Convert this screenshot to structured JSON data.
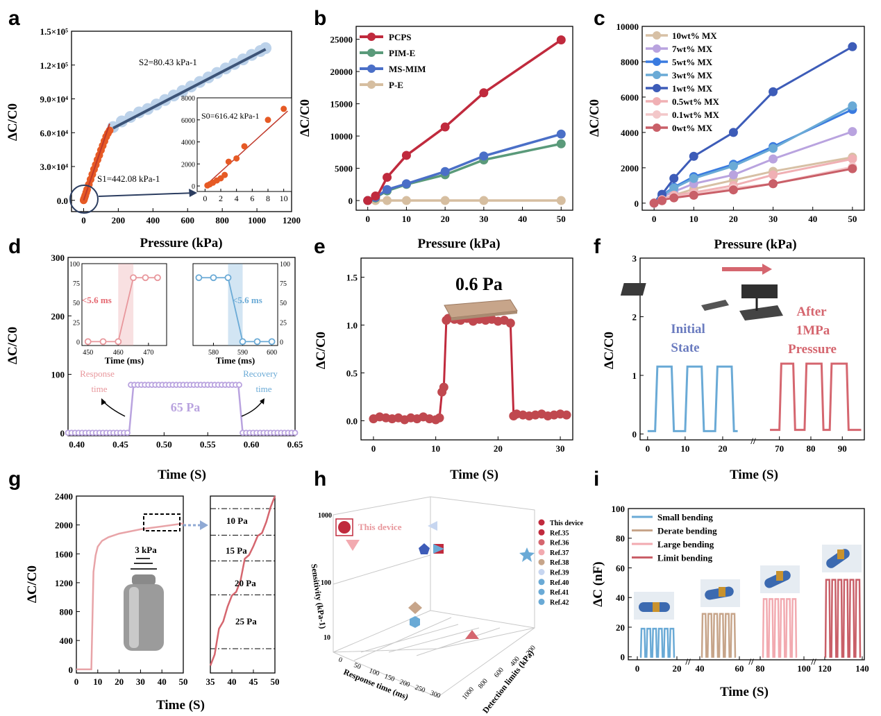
{
  "colors": {
    "red": "#c02a3d",
    "green": "#5a9a7a",
    "blue": "#4a6fc7",
    "tan": "#d6bea0",
    "lightblue": "#bcd2ea",
    "orange": "#e65a25",
    "navy": "#3d5478",
    "purple": "#b9a3df",
    "pink": "#e8979c",
    "skyblue": "#6aaad6",
    "salmon": "#d5666f"
  },
  "chart_data": [
    {
      "panel": "a",
      "type": "scatter",
      "xlabel": "Pressure (kPa)",
      "ylabel": "ΔC/C0",
      "xlim": [
        -70,
        1200
      ],
      "ylim": [
        -10000,
        150000
      ],
      "xticks": [
        "0",
        "200",
        "400",
        "600",
        "800",
        "1000",
        "1200"
      ],
      "yticks": [
        "0.0",
        "3.0×10⁴",
        "6.0×10⁴",
        "9.0×10⁴",
        "1.2×10⁵",
        "1.5×10⁵"
      ],
      "annotations": {
        "s1": "S1=442.08 kPa-1",
        "s2": "S2=80.43 kPa-1",
        "s0": "S0=616.42 kPa-1"
      },
      "low_series": {
        "x": [
          0,
          1,
          2,
          3,
          5,
          8,
          10,
          15,
          20,
          30,
          40,
          50,
          60,
          70,
          80,
          90,
          100,
          110,
          120,
          130,
          140,
          150
        ],
        "y": [
          0,
          500,
          900,
          1500,
          2200,
          3600,
          4500,
          7000,
          9500,
          14000,
          18500,
          23000,
          27500,
          31500,
          36000,
          40000,
          44500,
          48500,
          52500,
          56500,
          59500,
          62000
        ]
      },
      "high_series": {
        "x": [
          170,
          220,
          270,
          320,
          370,
          420,
          470,
          520,
          570,
          620,
          670,
          720,
          770,
          820,
          870,
          920,
          970,
          1020,
          1050
        ],
        "y": [
          65000,
          70000,
          74000,
          78000,
          81000,
          85000,
          89000,
          93000,
          97000,
          101000,
          105000,
          109000,
          113000,
          117000,
          121000,
          125000,
          129000,
          132500,
          135000
        ]
      },
      "inset": {
        "xlim": [
          -1,
          11
        ],
        "ylim": [
          -500,
          8000
        ],
        "xticks": [
          "0",
          "2",
          "4",
          "6",
          "8",
          "10"
        ],
        "yticks": [
          "0",
          "2000",
          "4000",
          "6000",
          "8000"
        ],
        "x": [
          0.3,
          0.6,
          1,
          1.5,
          2,
          2.5,
          3,
          4,
          5,
          8,
          10
        ],
        "y": [
          50,
          150,
          300,
          500,
          700,
          1000,
          2200,
          2500,
          3600,
          6000,
          7000
        ]
      }
    },
    {
      "panel": "b",
      "type": "line",
      "xlabel": "Pressure (kPa)",
      "ylabel": "ΔC/C0",
      "xlim": [
        -3,
        53
      ],
      "ylim": [
        -1500,
        27000
      ],
      "xticks": [
        "0",
        "10",
        "20",
        "30",
        "40",
        "50"
      ],
      "yticks": [
        "0",
        "5000",
        "10000",
        "15000",
        "20000",
        "25000"
      ],
      "x": [
        0,
        1,
        2,
        3,
        5,
        10,
        20,
        30,
        50
      ],
      "series": [
        {
          "name": "PCPS",
          "values": [
            0,
            200,
            700,
            1300,
            3600,
            7000,
            11400,
            16700,
            24900
          ]
        },
        {
          "name": "PIM-E",
          "values": [
            0,
            150,
            400,
            800,
            1500,
            2500,
            4000,
            6300,
            8800
          ]
        },
        {
          "name": "MS-MIM",
          "values": [
            0,
            200,
            500,
            900,
            1700,
            2600,
            4500,
            6900,
            10300
          ]
        },
        {
          "name": "P-E",
          "values": [
            0,
            0,
            0,
            0,
            0,
            0,
            0,
            0,
            0
          ]
        }
      ]
    },
    {
      "panel": "c",
      "type": "line",
      "xlabel": "Pressure (kPa)",
      "ylabel": "ΔC/C0",
      "xlim": [
        -3,
        53
      ],
      "ylim": [
        -400,
        10000
      ],
      "xticks": [
        "0",
        "10",
        "20",
        "30",
        "40",
        "50"
      ],
      "yticks": [
        "0",
        "2000",
        "4000",
        "6000",
        "8000",
        "10000"
      ],
      "x": [
        0,
        1,
        2,
        3,
        5,
        10,
        20,
        30,
        50
      ],
      "series": [
        {
          "name": "10wt% MX",
          "values": [
            0,
            100,
            200,
            300,
            450,
            800,
            1300,
            1800,
            2600
          ]
        },
        {
          "name": "7wt% MX",
          "values": [
            0,
            150,
            300,
            450,
            650,
            1100,
            1600,
            2500,
            4050
          ]
        },
        {
          "name": "5wt% MX",
          "values": [
            0,
            200,
            400,
            600,
            900,
            1500,
            2200,
            3200,
            5300
          ]
        },
        {
          "name": "3wt% MX",
          "values": [
            0,
            180,
            350,
            550,
            850,
            1400,
            2100,
            3100,
            5500
          ]
        },
        {
          "name": "1wt% MX",
          "values": [
            0,
            300,
            500,
            800,
            1400,
            2650,
            4000,
            6300,
            8850
          ]
        },
        {
          "name": "0.5wt% MX",
          "values": [
            0,
            100,
            200,
            300,
            450,
            600,
            1000,
            1600,
            2500
          ]
        },
        {
          "name": "0.1wt% MX",
          "values": [
            0,
            80,
            150,
            250,
            350,
            500,
            850,
            1100,
            2050
          ]
        },
        {
          "name": "0wt% MX",
          "values": [
            0,
            70,
            140,
            220,
            300,
            450,
            750,
            1100,
            1950
          ]
        }
      ]
    },
    {
      "panel": "d",
      "type": "line",
      "xlabel": "Time (S)",
      "ylabel": "ΔC/C0",
      "xlim": [
        0.39,
        0.65
      ],
      "ylim": [
        -5,
        300
      ],
      "xticks": [
        "0.40",
        "0.45",
        "0.50",
        "0.55",
        "0.60",
        "0.65"
      ],
      "yticks": [
        "0",
        "100",
        "200",
        "300"
      ],
      "annotations": {
        "response": "Response time",
        "recovery": "Recovery time",
        "pressure": "65 Pa"
      },
      "levels": {
        "low": 0,
        "high": 82
      },
      "transitions": {
        "rise_start": 0.46,
        "rise_end": 0.465,
        "fall_start": 0.585,
        "fall_end": 0.59
      },
      "inset_left": {
        "xlabel": "Time (ms)",
        "xlim": [
          448,
          476
        ],
        "ylim": [
          -5,
          100
        ],
        "xticks": [
          "450",
          "460",
          "470"
        ],
        "yticks": [
          "0",
          "25",
          "50",
          "75",
          "100"
        ],
        "label": "<5.6 ms",
        "x": [
          450,
          455,
          460,
          465,
          469,
          473
        ],
        "y": [
          0,
          0,
          0,
          82,
          82,
          82
        ]
      },
      "inset_right": {
        "xlabel": "Time (ms)",
        "xlim": [
          573,
          602
        ],
        "ylim": [
          -5,
          100
        ],
        "xticks": [
          "580",
          "590",
          "600"
        ],
        "yticks": [
          "0",
          "25",
          "50",
          "75",
          "100"
        ],
        "label": "<5.6 ms",
        "x": [
          575,
          580,
          585,
          590,
          595,
          600
        ],
        "y": [
          82,
          82,
          82,
          0,
          0,
          0
        ]
      }
    },
    {
      "panel": "e",
      "type": "line",
      "xlabel": "Time (S)",
      "ylabel": "ΔC/C0",
      "xlim": [
        -2,
        32
      ],
      "ylim": [
        -0.2,
        1.7
      ],
      "xticks": [
        "0",
        "10",
        "20",
        "30"
      ],
      "yticks": [
        "0.0",
        "0.5",
        "1.0",
        "1.5"
      ],
      "annotations": {
        "pressure": "0.6 Pa"
      },
      "x": [
        0,
        1,
        2,
        3,
        4,
        5,
        6,
        7,
        8,
        9,
        10,
        10.6,
        11,
        11.3,
        11.7,
        12,
        13,
        14,
        15,
        16,
        17,
        18,
        19,
        20,
        21,
        22,
        22.5,
        23,
        24,
        25,
        26,
        27,
        28,
        29,
        30,
        31
      ],
      "y": [
        0.02,
        0.04,
        0.03,
        0.02,
        0.03,
        0.01,
        0.03,
        0.02,
        0.04,
        0.02,
        0.01,
        0.03,
        0.3,
        0.35,
        1.05,
        1.07,
        1.06,
        1.05,
        1.07,
        1.04,
        1.06,
        1.05,
        1.06,
        1.04,
        1.05,
        1.02,
        0.05,
        0.07,
        0.06,
        0.05,
        0.06,
        0.07,
        0.05,
        0.06,
        0.07,
        0.06
      ]
    },
    {
      "panel": "f",
      "type": "line",
      "xlabel": "Time (S)",
      "ylabel": "ΔC/C0",
      "ylim": [
        -0.1,
        3
      ],
      "yticks": [
        "0",
        "1",
        "2",
        "3"
      ],
      "xticks_left": [
        "0",
        "10",
        "20"
      ],
      "xticks_right": [
        "70",
        "80",
        "90"
      ],
      "annotations": {
        "initial": "Initial State",
        "after": "After 1MPa Pressure"
      },
      "initial_state": {
        "cycles": [
          [
            2,
            7
          ],
          [
            10,
            15
          ],
          [
            18,
            23
          ]
        ],
        "high": 1.15,
        "low": 0.05
      },
      "after_pressure": {
        "cycles": [
          [
            70,
            75
          ],
          [
            78,
            84
          ],
          [
            86,
            92
          ]
        ],
        "high": 1.2,
        "low": 0.07
      }
    },
    {
      "panel": "g",
      "type": "line",
      "xlabel": "Time (S)",
      "ylabel": "ΔC/C0",
      "xlim": [
        0,
        50
      ],
      "ylim": [
        -50,
        2400
      ],
      "xticks": [
        "0",
        "10",
        "20",
        "30",
        "40",
        "50"
      ],
      "yticks": [
        "0",
        "400",
        "800",
        "1200",
        "1600",
        "2000",
        "2400"
      ],
      "annotations": {
        "weight": "3 kPa",
        "steps": [
          "10 Pa",
          "15 Pa",
          "20 Pa",
          "25 Pa"
        ]
      },
      "x": [
        0,
        5,
        6,
        7,
        8,
        9,
        10,
        12,
        15,
        20,
        25,
        30,
        35,
        40,
        45,
        50
      ],
      "y": [
        0,
        0,
        0,
        0,
        1350,
        1580,
        1700,
        1780,
        1830,
        1880,
        1910,
        1940,
        1960,
        1980,
        2000,
        2020
      ],
      "zoom": {
        "xlim": [
          35,
          50
        ],
        "ylim": [
          0,
          2400
        ],
        "xticks": [
          "35",
          "40",
          "45",
          "50"
        ],
        "x": [
          35,
          36,
          37,
          38,
          39,
          40,
          41,
          42,
          43,
          44,
          45,
          46,
          47,
          48,
          49,
          50
        ],
        "y": [
          100,
          250,
          600,
          700,
          900,
          1050,
          1100,
          1250,
          1550,
          1600,
          1720,
          1860,
          1900,
          2050,
          2250,
          2400
        ]
      }
    },
    {
      "panel": "h",
      "type": "scatter",
      "xlabel": "Response time (ms)",
      "ylabel": "Sensitivity (kPa-1)",
      "zlabel": "Detection limits (kPa)",
      "yticks": [
        "10",
        "100",
        "1000"
      ],
      "xticks": [
        "0",
        "50",
        "100",
        "150",
        "200",
        "250",
        "300"
      ],
      "zticks": [
        "200",
        "400",
        "600",
        "800",
        "1000"
      ],
      "annotations": {
        "this": "This device"
      },
      "legend": [
        "This device",
        "Ref.35",
        "Ref.36",
        "Ref.37",
        "Ref.38",
        "Ref.39",
        "Ref.40",
        "Ref.41",
        "Ref.42"
      ]
    },
    {
      "panel": "i",
      "type": "line",
      "xlabel": "Time (S)",
      "ylabel": "ΔC (nF)",
      "ylim": [
        -2,
        100
      ],
      "yticks": [
        "0",
        "20",
        "40",
        "60",
        "80",
        "100"
      ],
      "xticks": [
        "0",
        "20",
        "40",
        "60",
        "80",
        "100",
        "120",
        "140"
      ],
      "series": [
        {
          "name": "Small bending",
          "high": 19
        },
        {
          "name": "Derate bending",
          "high": 29
        },
        {
          "name": "Large bending",
          "high": 39
        },
        {
          "name": "Limit bending",
          "high": 52
        }
      ]
    }
  ]
}
